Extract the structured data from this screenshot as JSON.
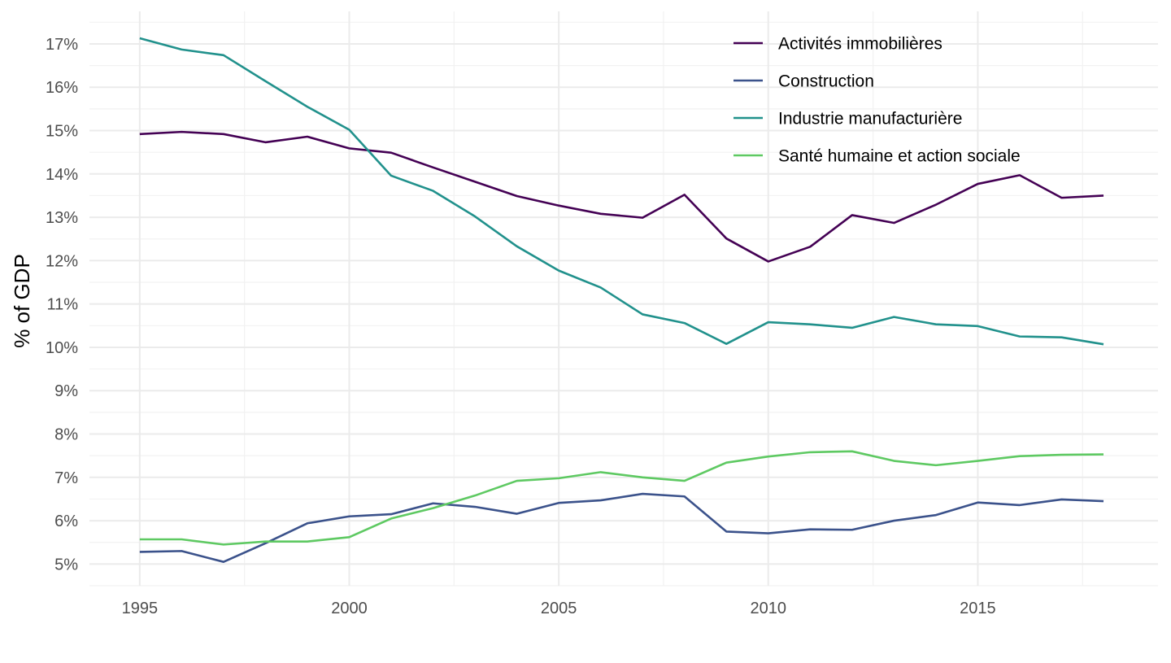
{
  "chart_data": {
    "type": "line",
    "title": "",
    "xlabel": "",
    "ylabel": "% of GDP",
    "x": [
      1995,
      1996,
      1997,
      1998,
      1999,
      2000,
      2001,
      2002,
      2003,
      2004,
      2005,
      2006,
      2007,
      2008,
      2009,
      2010,
      2011,
      2012,
      2013,
      2014,
      2015,
      2016,
      2017,
      2018
    ],
    "xlim": [
      1993.8,
      2019.3
    ],
    "ylim": [
      4.5,
      17.75
    ],
    "x_ticks": [
      1995,
      2000,
      2005,
      2010,
      2015
    ],
    "x_tick_labels": [
      "1995",
      "2000",
      "2005",
      "2010",
      "2015"
    ],
    "y_ticks": [
      5,
      6,
      7,
      8,
      9,
      10,
      11,
      12,
      13,
      14,
      15,
      16,
      17
    ],
    "y_tick_labels": [
      "5%",
      "6%",
      "7%",
      "8%",
      "9%",
      "10%",
      "11%",
      "12%",
      "13%",
      "14%",
      "15%",
      "16%",
      "17%"
    ],
    "grid": true,
    "legend_position": "top-right",
    "series": [
      {
        "name": "Activités immobilières",
        "color": "#440154",
        "values": [
          14.92,
          14.97,
          14.92,
          14.73,
          14.86,
          14.59,
          14.49,
          14.15,
          13.82,
          13.49,
          13.27,
          13.08,
          12.99,
          13.52,
          12.51,
          11.98,
          12.32,
          13.05,
          12.87,
          13.29,
          13.77,
          13.97,
          13.45,
          13.5
        ]
      },
      {
        "name": "Construction",
        "color": "#3b528b",
        "values": [
          5.28,
          5.3,
          5.05,
          5.48,
          5.94,
          6.1,
          6.15,
          6.4,
          6.32,
          6.16,
          6.41,
          6.47,
          6.62,
          6.56,
          5.75,
          5.71,
          5.8,
          5.79,
          6.0,
          6.13,
          6.42,
          6.36,
          6.49,
          6.45
        ]
      },
      {
        "name": "Industrie manufacturière",
        "color": "#21918c",
        "values": [
          17.13,
          16.87,
          16.74,
          16.14,
          15.55,
          15.02,
          13.96,
          13.61,
          13.02,
          12.33,
          11.77,
          11.38,
          10.76,
          10.56,
          10.08,
          10.58,
          10.53,
          10.45,
          10.7,
          10.53,
          10.49,
          10.25,
          10.23,
          10.07
        ]
      },
      {
        "name": "Santé humaine et action sociale",
        "color": "#5ec962",
        "values": [
          5.57,
          5.57,
          5.45,
          5.52,
          5.52,
          5.62,
          6.05,
          6.29,
          6.58,
          6.92,
          6.98,
          7.12,
          7.0,
          6.92,
          7.34,
          7.48,
          7.58,
          7.6,
          7.38,
          7.28,
          7.38,
          7.49,
          7.52,
          7.53
        ]
      }
    ]
  }
}
